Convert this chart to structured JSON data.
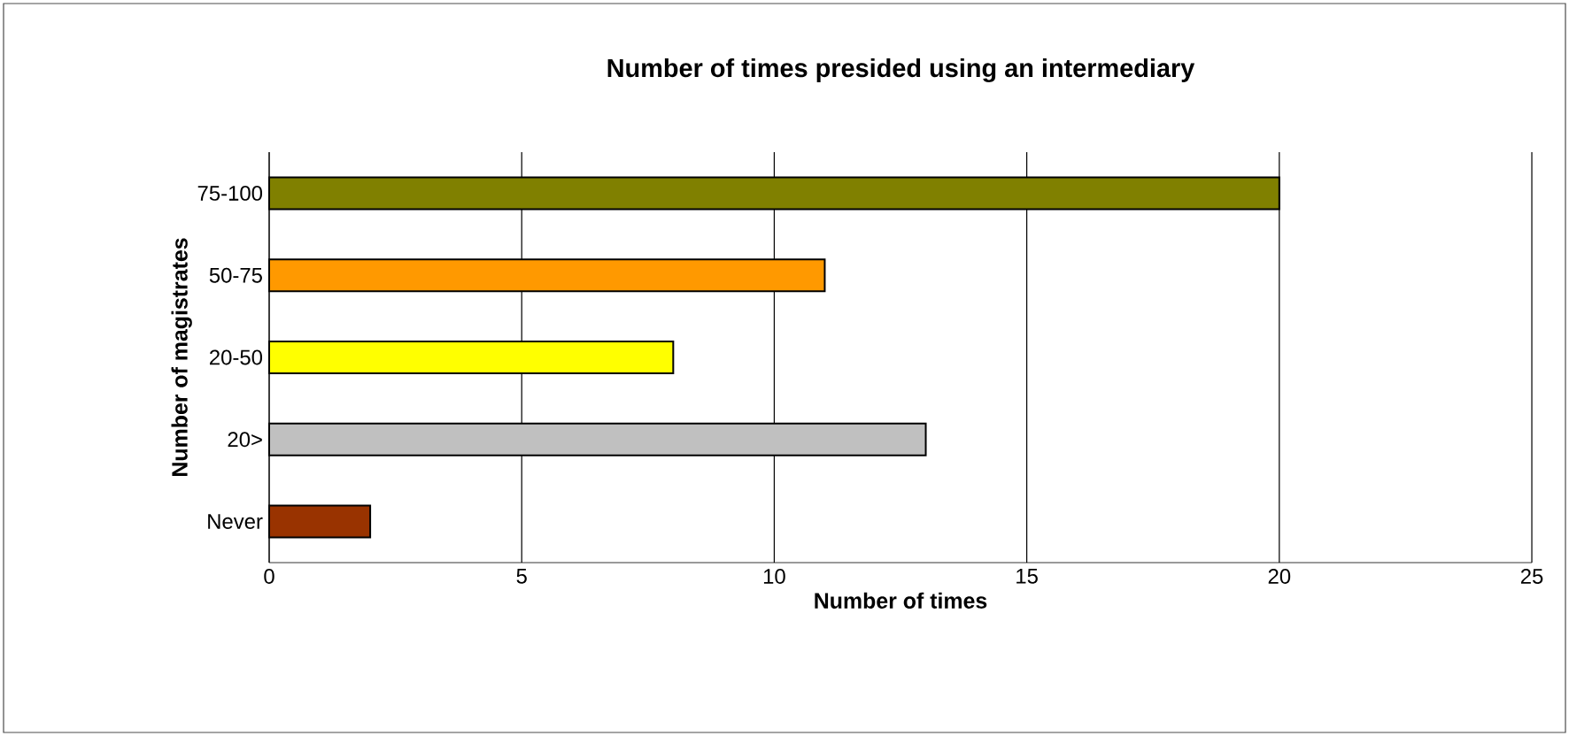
{
  "chart_data": {
    "type": "bar",
    "orientation": "horizontal",
    "title": "Number of times presided using an intermediary",
    "xlabel": "Number of times",
    "ylabel": "Number of magistrates",
    "categories": [
      "75-100",
      "50-75",
      "20-50",
      "20>",
      "Never"
    ],
    "values": [
      20,
      11,
      8,
      13,
      2
    ],
    "colors": [
      "#808000",
      "#ff9900",
      "#ffff00",
      "#c0c0c0",
      "#993300"
    ],
    "xlim": [
      0,
      25
    ],
    "xticks": [
      0,
      5,
      10,
      15,
      20,
      25
    ],
    "grid": "x"
  }
}
